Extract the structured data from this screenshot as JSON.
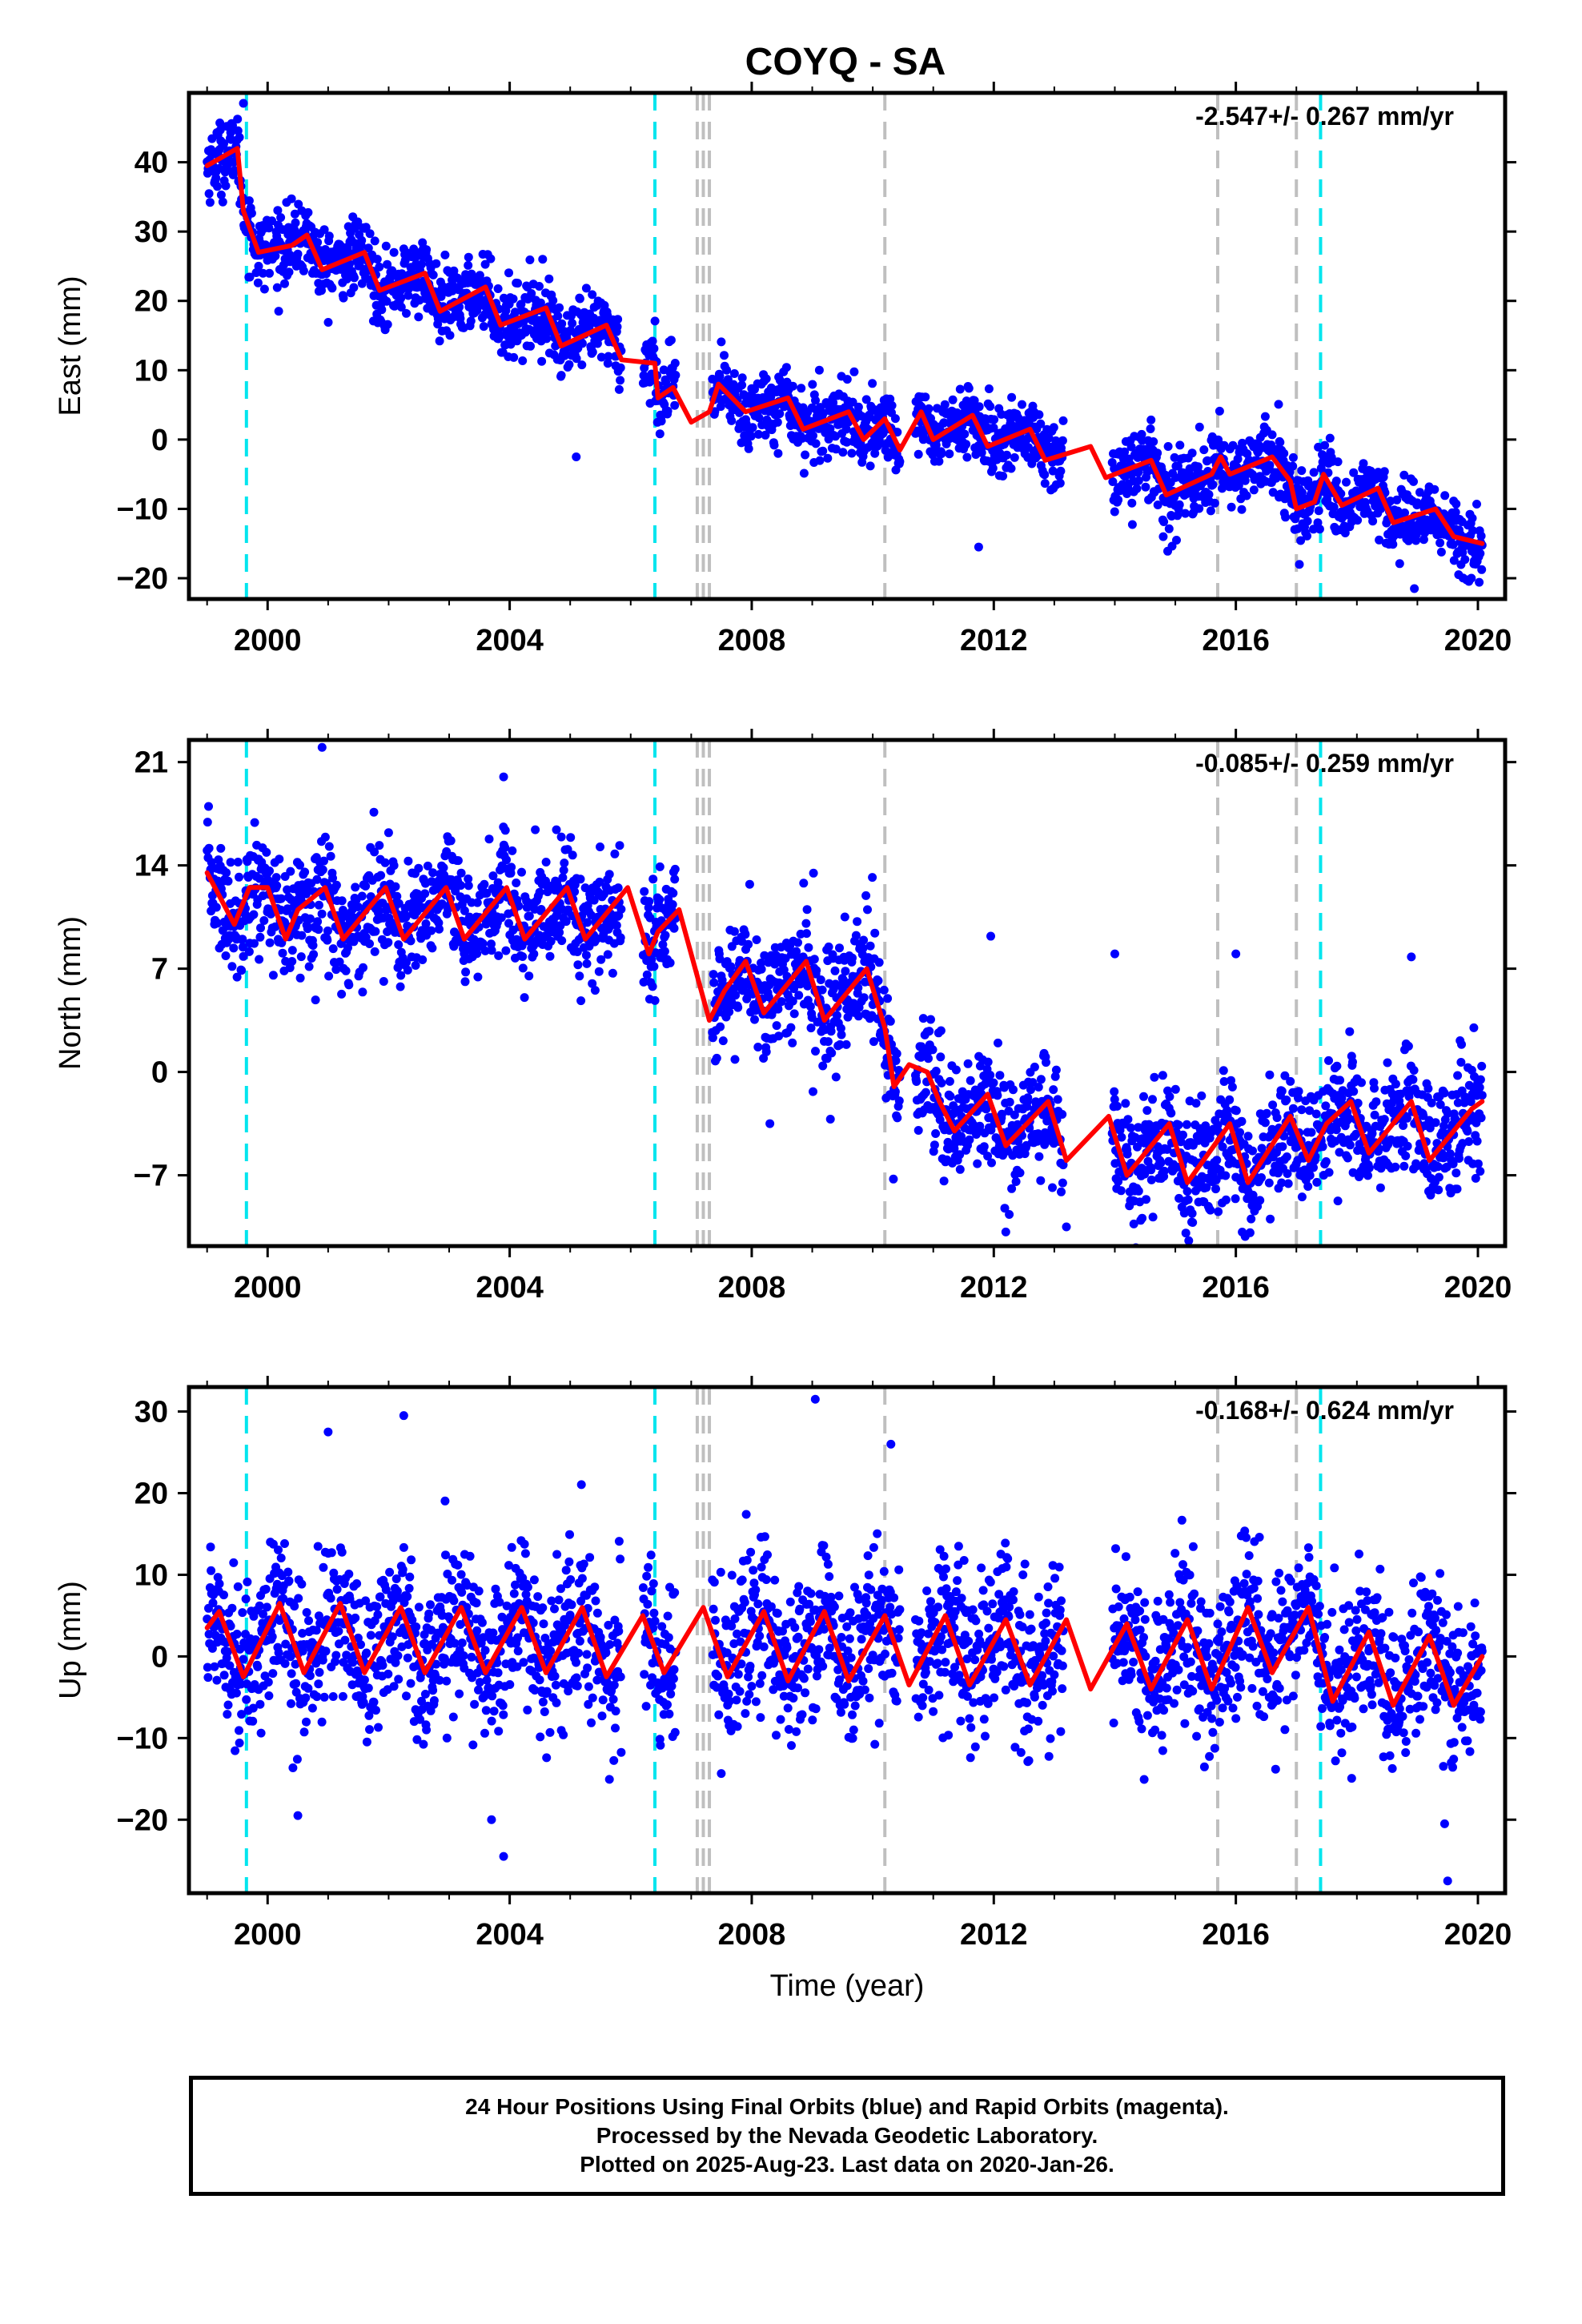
{
  "title": "COYQ - SA",
  "colors": {
    "points": "#0000ff",
    "model": "#ff0000",
    "offset_equipment": "#00e5ee",
    "offset_other": "#bfbfbf",
    "frame": "#000000"
  },
  "footer": {
    "line1": "24 Hour Positions Using Final Orbits (blue) and Rapid Orbits (magenta).",
    "line2": "Processed by the Nevada Geodetic Laboratory.",
    "line3": "Plotted on 2025-Aug-23. Last data on 2020-Jan-26."
  },
  "chart_data": [
    {
      "type": "scatter",
      "component": "East",
      "ylabel": "East (mm)",
      "xlabel": "",
      "rate_label": "-2.547+/- 0.267 mm/yr",
      "xlim": [
        1998.7,
        2020.45
      ],
      "ylim": [
        -23,
        50
      ],
      "xticks": [
        2000,
        2004,
        2008,
        2012,
        2016,
        2020
      ],
      "yticks": [
        -20,
        -10,
        0,
        10,
        20,
        30,
        40
      ],
      "offsets_equipment": [
        1999.65,
        2006.4,
        2017.4
      ],
      "offsets_other": [
        2007.1,
        2007.2,
        2007.3,
        2010.2,
        2015.7,
        2017.0
      ],
      "data_range": [
        1999.0,
        2020.07
      ],
      "model_series": {
        "name": "model",
        "points": [
          [
            1999.0,
            39.5
          ],
          [
            1999.5,
            42
          ],
          [
            1999.6,
            33
          ],
          [
            1999.85,
            27
          ],
          [
            2000.4,
            28
          ],
          [
            2000.65,
            29.5
          ],
          [
            2000.9,
            24.5
          ],
          [
            2001.6,
            27
          ],
          [
            2001.85,
            21.5
          ],
          [
            2002.6,
            24
          ],
          [
            2002.85,
            18.5
          ],
          [
            2003.6,
            22
          ],
          [
            2003.85,
            16.5
          ],
          [
            2004.6,
            19
          ],
          [
            2004.85,
            13.5
          ],
          [
            2005.6,
            16.5
          ],
          [
            2005.85,
            11.5
          ],
          [
            2006.4,
            11
          ],
          [
            2006.45,
            6
          ],
          [
            2006.7,
            7.5
          ],
          [
            2007.0,
            2.5
          ],
          [
            2007.3,
            4
          ],
          [
            2007.45,
            8
          ],
          [
            2007.9,
            4
          ],
          [
            2008.6,
            6
          ],
          [
            2008.85,
            1.5
          ],
          [
            2009.6,
            4
          ],
          [
            2009.85,
            0
          ],
          [
            2010.2,
            3
          ],
          [
            2010.45,
            -1.5
          ],
          [
            2010.8,
            4
          ],
          [
            2011.0,
            0
          ],
          [
            2011.65,
            3.5
          ],
          [
            2011.9,
            -1
          ],
          [
            2012.6,
            1.5
          ],
          [
            2012.85,
            -3
          ],
          [
            2013.6,
            -1
          ],
          [
            2013.85,
            -5.5
          ],
          [
            2014.6,
            -3
          ],
          [
            2014.85,
            -8
          ],
          [
            2015.6,
            -5
          ],
          [
            2015.75,
            -2.5
          ],
          [
            2015.9,
            -5
          ],
          [
            2016.6,
            -2.5
          ],
          [
            2016.9,
            -6
          ],
          [
            2017.0,
            -10
          ],
          [
            2017.3,
            -9
          ],
          [
            2017.45,
            -5
          ],
          [
            2017.75,
            -9.5
          ],
          [
            2018.35,
            -7
          ],
          [
            2018.6,
            -12
          ],
          [
            2019.3,
            -10
          ],
          [
            2019.6,
            -14
          ],
          [
            2020.07,
            -15
          ]
        ]
      },
      "residual_sd": 2.6,
      "outliers": [
        [
          2005.1,
          -2.5
        ],
        [
          2014.8,
          -14
        ],
        [
          2018.95,
          -21.5
        ],
        [
          2017.05,
          -18
        ],
        [
          2011.75,
          -15.5
        ],
        [
          1999.6,
          48.5
        ]
      ]
    },
    {
      "type": "scatter",
      "component": "North",
      "ylabel": "North (mm)",
      "xlabel": "",
      "rate_label": "-0.085+/- 0.259 mm/yr",
      "xlim": [
        1998.7,
        2020.45
      ],
      "ylim": [
        -11.8,
        22.5
      ],
      "xticks": [
        2000,
        2004,
        2008,
        2012,
        2016,
        2020
      ],
      "yticks": [
        -7,
        0,
        7,
        14,
        21
      ],
      "offsets_equipment": [
        1999.65,
        2006.4,
        2017.4
      ],
      "offsets_other": [
        2007.1,
        2007.2,
        2007.3,
        2010.2,
        2015.7,
        2017.0
      ],
      "data_range": [
        1999.0,
        2020.07
      ],
      "model_series": {
        "name": "model",
        "points": [
          [
            1999.0,
            13.5
          ],
          [
            1999.45,
            10
          ],
          [
            1999.7,
            12.5
          ],
          [
            2000.0,
            12.5
          ],
          [
            2000.3,
            9
          ],
          [
            2000.5,
            11
          ],
          [
            2000.95,
            12.5
          ],
          [
            2001.25,
            9
          ],
          [
            2001.95,
            12.5
          ],
          [
            2002.25,
            9
          ],
          [
            2002.95,
            12.5
          ],
          [
            2003.25,
            9
          ],
          [
            2003.95,
            12.5
          ],
          [
            2004.25,
            9
          ],
          [
            2004.95,
            12.5
          ],
          [
            2005.25,
            9
          ],
          [
            2005.95,
            12.5
          ],
          [
            2006.3,
            8
          ],
          [
            2006.45,
            9.5
          ],
          [
            2006.8,
            11
          ],
          [
            2007.3,
            3.5
          ],
          [
            2007.55,
            5.5
          ],
          [
            2007.9,
            7.5
          ],
          [
            2008.2,
            4
          ],
          [
            2008.9,
            7.5
          ],
          [
            2009.2,
            3.5
          ],
          [
            2009.9,
            7
          ],
          [
            2010.2,
            3
          ],
          [
            2010.35,
            -1
          ],
          [
            2010.6,
            0.5
          ],
          [
            2010.9,
            0
          ],
          [
            2011.1,
            -2
          ],
          [
            2011.35,
            -4
          ],
          [
            2011.9,
            -1.5
          ],
          [
            2012.2,
            -5
          ],
          [
            2012.9,
            -2
          ],
          [
            2013.2,
            -6
          ],
          [
            2013.9,
            -3
          ],
          [
            2014.2,
            -7
          ],
          [
            2014.9,
            -3.5
          ],
          [
            2015.2,
            -7.5
          ],
          [
            2015.9,
            -3.5
          ],
          [
            2016.2,
            -7.5
          ],
          [
            2016.9,
            -3
          ],
          [
            2017.2,
            -6
          ],
          [
            2017.5,
            -3.5
          ],
          [
            2017.9,
            -2
          ],
          [
            2018.2,
            -5.5
          ],
          [
            2018.9,
            -2
          ],
          [
            2019.2,
            -6
          ],
          [
            2019.9,
            -2.5
          ],
          [
            2020.07,
            -2
          ]
        ]
      },
      "residual_sd": 2.0,
      "outliers": [
        [
          2000.9,
          22
        ],
        [
          2003.9,
          20
        ],
        [
          2011.95,
          9.2
        ],
        [
          2014.0,
          8
        ],
        [
          2016.0,
          8
        ],
        [
          2018.9,
          7.8
        ],
        [
          2008.3,
          -3.5
        ],
        [
          2009.3,
          -3.2
        ],
        [
          2013.2,
          -10.5
        ]
      ]
    },
    {
      "type": "scatter",
      "component": "Up",
      "ylabel": "Up (mm)",
      "xlabel": "Time (year)",
      "rate_label": "-0.168+/- 0.624 mm/yr",
      "xlim": [
        1998.7,
        2020.45
      ],
      "ylim": [
        -29,
        33
      ],
      "xticks": [
        2000,
        2004,
        2008,
        2012,
        2016,
        2020
      ],
      "yticks": [
        -20,
        -10,
        0,
        10,
        20,
        30
      ],
      "offsets_equipment": [
        1999.65,
        2006.4,
        2017.4
      ],
      "offsets_other": [
        2007.1,
        2007.2,
        2007.3,
        2010.2,
        2015.7,
        2017.0
      ],
      "data_range": [
        1999.0,
        2020.07
      ],
      "model_series": {
        "name": "model",
        "points": [
          [
            1999.0,
            3.5
          ],
          [
            1999.2,
            5.5
          ],
          [
            1999.6,
            -2.5
          ],
          [
            2000.2,
            6.5
          ],
          [
            2000.6,
            -2
          ],
          [
            2001.2,
            6.5
          ],
          [
            2001.6,
            -2
          ],
          [
            2002.2,
            6
          ],
          [
            2002.6,
            -2
          ],
          [
            2003.2,
            6
          ],
          [
            2003.6,
            -2
          ],
          [
            2004.2,
            6
          ],
          [
            2004.6,
            -2
          ],
          [
            2005.2,
            6
          ],
          [
            2005.6,
            -2.5
          ],
          [
            2006.2,
            5
          ],
          [
            2006.55,
            -2
          ],
          [
            2007.2,
            6
          ],
          [
            2007.6,
            -2.5
          ],
          [
            2008.2,
            5.5
          ],
          [
            2008.6,
            -3
          ],
          [
            2009.2,
            5.5
          ],
          [
            2009.6,
            -3
          ],
          [
            2010.2,
            5
          ],
          [
            2010.6,
            -3.5
          ],
          [
            2011.2,
            5
          ],
          [
            2011.6,
            -3.5
          ],
          [
            2012.2,
            4.5
          ],
          [
            2012.6,
            -3.5
          ],
          [
            2013.2,
            4.5
          ],
          [
            2013.6,
            -4
          ],
          [
            2014.2,
            4
          ],
          [
            2014.6,
            -4
          ],
          [
            2015.2,
            4.5
          ],
          [
            2015.6,
            -4
          ],
          [
            2016.2,
            6
          ],
          [
            2016.6,
            -2
          ],
          [
            2017.2,
            6
          ],
          [
            2017.6,
            -5.5
          ],
          [
            2018.2,
            3
          ],
          [
            2018.6,
            -6
          ],
          [
            2019.2,
            2.5
          ],
          [
            2019.6,
            -6
          ],
          [
            2020.07,
            0
          ]
        ]
      },
      "residual_sd": 4.8,
      "outliers": [
        [
          2009.05,
          31.5
        ],
        [
          2002.25,
          29.5
        ],
        [
          2010.3,
          26
        ],
        [
          2001.0,
          27.5
        ],
        [
          2003.7,
          -20
        ],
        [
          2003.9,
          -24.5
        ],
        [
          2019.5,
          -27.5
        ],
        [
          2019.45,
          -20.5
        ],
        [
          2000.5,
          -19.5
        ]
      ]
    }
  ]
}
